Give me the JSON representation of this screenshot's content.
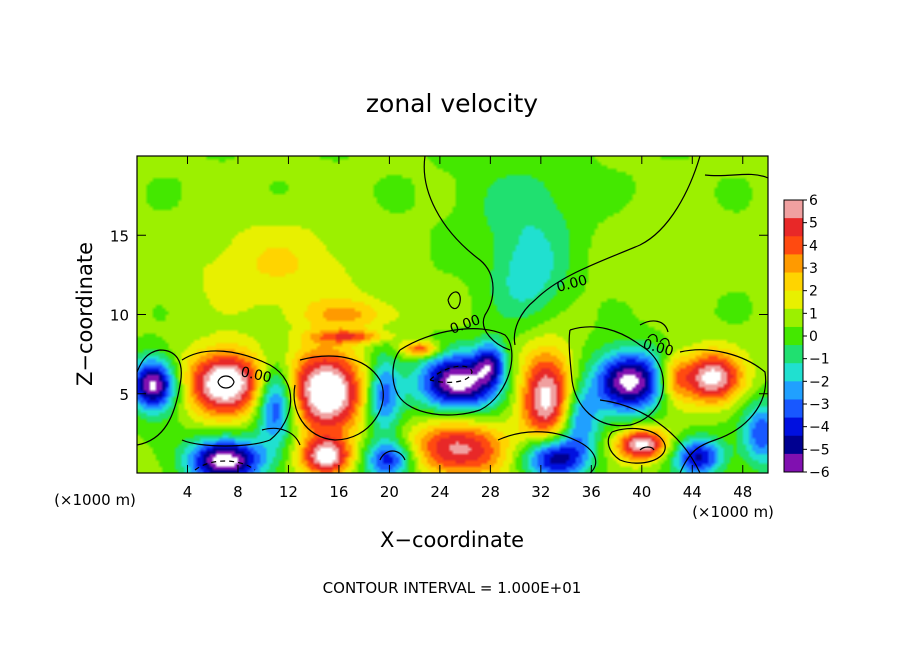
{
  "chart_data": {
    "type": "heatmap",
    "title": "zonal velocity",
    "xlabel": "X−coordinate",
    "ylabel": "Z−coordinate",
    "x_unit_left": "(×1000 m)",
    "x_unit_right": "(×1000 m)",
    "xlim": [
      0,
      50
    ],
    "ylim": [
      0,
      20
    ],
    "x_ticks": [
      4,
      8,
      12,
      16,
      20,
      24,
      28,
      32,
      36,
      40,
      44,
      48
    ],
    "y_ticks": [
      5,
      10,
      15
    ],
    "colorbar": {
      "vmin": -6,
      "vmax": 6,
      "ticks": [
        "6",
        "5",
        "4",
        "3",
        "2",
        "1",
        "0",
        "−1",
        "−2",
        "−3",
        "−4",
        "−5",
        "−6"
      ],
      "colors": [
        "#f0a0a0",
        "#e82828",
        "#ff4a10",
        "#ff9a00",
        "#ffd400",
        "#e8f000",
        "#9cf000",
        "#44e800",
        "#20e070",
        "#20e0d0",
        "#20a0ff",
        "#1858ff",
        "#0010e0",
        "#000090",
        "#8010b0"
      ]
    },
    "contour_labels": [
      "0.00",
      "0.00",
      "0.00",
      "0.00"
    ],
    "footer": "CONTOUR INTERVAL = 1.000E+01",
    "features": [
      {
        "x": 1.3,
        "z": 5.6,
        "v": -7,
        "rx": 1.8,
        "rz": 1.6
      },
      {
        "x": 7.0,
        "z": 5.7,
        "v": 7,
        "rx": 3.0,
        "rz": 2.0
      },
      {
        "x": 15.0,
        "z": 5.2,
        "v": 7,
        "rx": 3.0,
        "rz": 2.6
      },
      {
        "x": 25.5,
        "z": 5.7,
        "v": -7,
        "rx": 3.2,
        "rz": 1.8
      },
      {
        "x": 32.5,
        "z": 4.8,
        "v": 6,
        "rx": 2.2,
        "rz": 3.0
      },
      {
        "x": 39.0,
        "z": 5.8,
        "v": -7,
        "rx": 2.8,
        "rz": 1.9
      },
      {
        "x": 45.5,
        "z": 6.0,
        "v": 6,
        "rx": 2.4,
        "rz": 1.6
      },
      {
        "x": 7.0,
        "z": 0.8,
        "v": -7,
        "rx": 3.0,
        "rz": 1.4
      },
      {
        "x": 15.0,
        "z": 1.0,
        "v": 6,
        "rx": 2.0,
        "rz": 1.2
      },
      {
        "x": 20.0,
        "z": 0.8,
        "v": -5,
        "rx": 2.0,
        "rz": 1.2
      },
      {
        "x": 25.5,
        "z": 1.5,
        "v": 5,
        "rx": 4.0,
        "rz": 1.8
      },
      {
        "x": 33.0,
        "z": 1.0,
        "v": -6,
        "rx": 2.6,
        "rz": 1.4
      },
      {
        "x": 40.0,
        "z": 1.8,
        "v": 6,
        "rx": 2.0,
        "rz": 1.0
      },
      {
        "x": 44.5,
        "z": 1.0,
        "v": -5,
        "rx": 2.0,
        "rz": 1.2
      },
      {
        "x": 49.5,
        "z": 2.5,
        "v": -4,
        "rx": 1.5,
        "rz": 2.0
      },
      {
        "x": 11.0,
        "z": 4.5,
        "v": -5,
        "rx": 1.5,
        "rz": 2.5
      },
      {
        "x": 19.5,
        "z": 5.0,
        "v": -4,
        "rx": 1.4,
        "rz": 2.5
      },
      {
        "x": 28.0,
        "z": 7.0,
        "v": -4,
        "rx": 1.2,
        "rz": 1.3
      },
      {
        "x": 35.0,
        "z": 3.5,
        "v": -4,
        "rx": 1.5,
        "rz": 2.0
      },
      {
        "x": 42.5,
        "z": 6.0,
        "v": 3,
        "rx": 1.2,
        "rz": 1.5
      },
      {
        "x": 22.5,
        "z": 7.8,
        "v": 4,
        "rx": 1.5,
        "rz": 0.5
      },
      {
        "x": 17.0,
        "z": 8.6,
        "v": 3,
        "rx": 3.0,
        "rz": 0.4
      },
      {
        "x": 17.0,
        "z": 10.0,
        "v": 2,
        "rx": 4.0,
        "rz": 1.0
      },
      {
        "x": 11.0,
        "z": 13.0,
        "v": 1.5,
        "rx": 7.0,
        "rz": 3.0
      },
      {
        "x": 31.0,
        "z": 12.5,
        "v": -2.2,
        "rx": 3.0,
        "rz": 3.0
      },
      {
        "x": 31.0,
        "z": 17.0,
        "v": -1.2,
        "rx": 5.0,
        "rz": 3.0
      },
      {
        "x": 41.0,
        "z": 14.0,
        "v": 0.6,
        "rx": 5.0,
        "rz": 3.0
      }
    ]
  }
}
